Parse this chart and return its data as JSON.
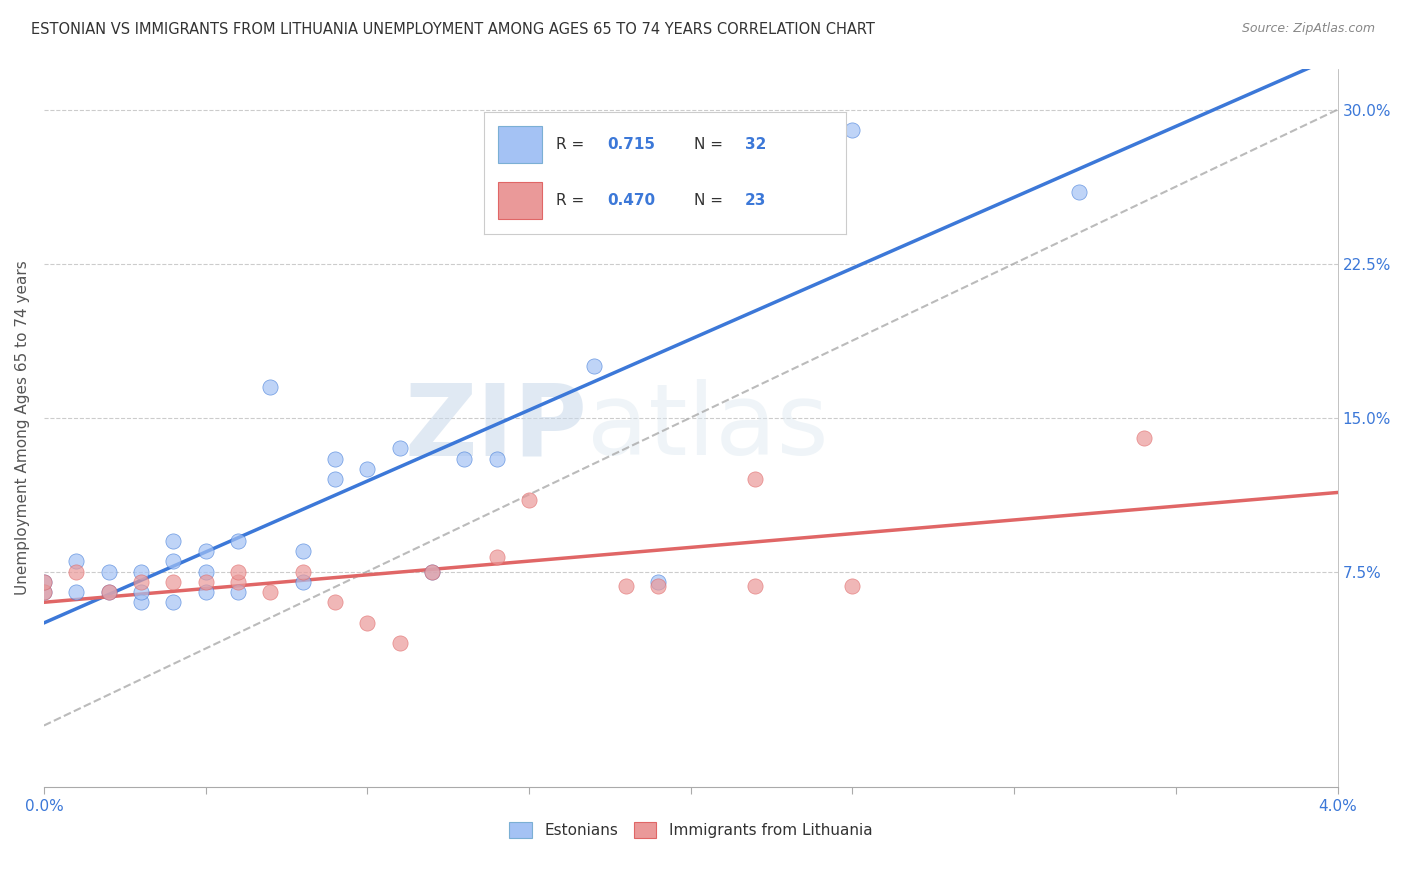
{
  "title": "ESTONIAN VS IMMIGRANTS FROM LITHUANIA UNEMPLOYMENT AMONG AGES 65 TO 74 YEARS CORRELATION CHART",
  "source": "Source: ZipAtlas.com",
  "ylabel": "Unemployment Among Ages 65 to 74 years",
  "xlim": [
    0.0,
    0.04
  ],
  "ylim": [
    0.0,
    0.32
  ],
  "yticks_right": [
    0.075,
    0.15,
    0.225,
    0.3
  ],
  "yticklabels_right": [
    "7.5%",
    "15.0%",
    "22.5%",
    "30.0%"
  ],
  "R_blue": 0.715,
  "N_blue": 32,
  "R_pink": 0.47,
  "N_pink": 23,
  "blue_color": "#a4c2f4",
  "pink_color": "#ea9999",
  "blue_line_color": "#3c78d8",
  "pink_line_color": "#e06666",
  "diag_line_color": "#aaaaaa",
  "legend_text_color": "#3c78d8",
  "blue_scatter_x": [
    0.0,
    0.0,
    0.001,
    0.001,
    0.002,
    0.002,
    0.003,
    0.003,
    0.003,
    0.004,
    0.004,
    0.004,
    0.005,
    0.005,
    0.005,
    0.006,
    0.006,
    0.007,
    0.008,
    0.008,
    0.009,
    0.009,
    0.01,
    0.011,
    0.012,
    0.013,
    0.014,
    0.017,
    0.019,
    0.022,
    0.025,
    0.032
  ],
  "blue_scatter_y": [
    0.065,
    0.07,
    0.065,
    0.08,
    0.065,
    0.075,
    0.06,
    0.065,
    0.075,
    0.06,
    0.08,
    0.09,
    0.065,
    0.075,
    0.085,
    0.065,
    0.09,
    0.165,
    0.07,
    0.085,
    0.12,
    0.13,
    0.125,
    0.135,
    0.075,
    0.13,
    0.13,
    0.175,
    0.07,
    0.275,
    0.29,
    0.26
  ],
  "pink_scatter_x": [
    0.0,
    0.0,
    0.001,
    0.002,
    0.003,
    0.004,
    0.005,
    0.006,
    0.006,
    0.007,
    0.008,
    0.009,
    0.01,
    0.011,
    0.012,
    0.014,
    0.015,
    0.018,
    0.019,
    0.022,
    0.022,
    0.025,
    0.034
  ],
  "pink_scatter_y": [
    0.065,
    0.07,
    0.075,
    0.065,
    0.07,
    0.07,
    0.07,
    0.07,
    0.075,
    0.065,
    0.075,
    0.06,
    0.05,
    0.04,
    0.075,
    0.082,
    0.11,
    0.068,
    0.068,
    0.068,
    0.12,
    0.068,
    0.14
  ],
  "background_color": "#ffffff",
  "grid_color": "#cccccc",
  "watermark_zip": "ZIP",
  "watermark_atlas": "atlas"
}
